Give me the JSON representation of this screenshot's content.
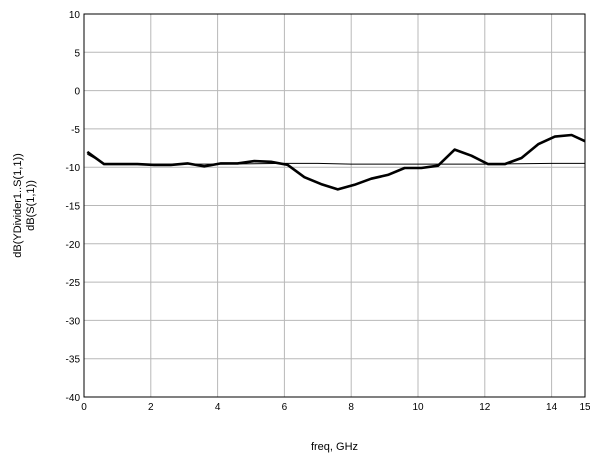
{
  "chart_data": {
    "type": "line",
    "xlabel": "freq, GHz",
    "ylabel": [
      "dB(YDivider1..S(1,1))",
      "dB(S(1,1))"
    ],
    "xlim": [
      0,
      15
    ],
    "ylim": [
      -40,
      10
    ],
    "xticks": [
      0,
      2,
      4,
      6,
      8,
      10,
      12,
      14,
      15
    ],
    "yticks": [
      10,
      5,
      0,
      -5,
      -10,
      -15,
      -20,
      -25,
      -30,
      -35,
      -40
    ],
    "grid": true,
    "series": [
      {
        "color": "#000000",
        "line_weight": "thin",
        "x": [
          0.1,
          0.6,
          2,
          4,
          6,
          7,
          8,
          10,
          12,
          14,
          15
        ],
        "y": [
          -8.3,
          -9.5,
          -9.6,
          -9.6,
          -9.5,
          -9.5,
          -9.6,
          -9.6,
          -9.6,
          -9.5,
          -9.5
        ]
      },
      {
        "color": "#000000",
        "line_weight": "thick",
        "x": [
          0.1,
          0.6,
          1.1,
          1.6,
          2.1,
          2.6,
          3.1,
          3.6,
          4.1,
          4.6,
          5.1,
          5.6,
          6.1,
          6.6,
          7.1,
          7.6,
          8.1,
          8.6,
          9.1,
          9.6,
          10.1,
          10.6,
          11.1,
          11.6,
          12.1,
          12.6,
          13.1,
          13.6,
          14.1,
          14.6,
          15
        ],
        "y": [
          -8.0,
          -9.6,
          -9.6,
          -9.6,
          -9.7,
          -9.7,
          -9.5,
          -9.9,
          -9.5,
          -9.5,
          -9.2,
          -9.3,
          -9.7,
          -11.3,
          -12.2,
          -12.9,
          -12.3,
          -11.5,
          -11.0,
          -10.1,
          -10.1,
          -9.8,
          -7.7,
          -8.5,
          -9.6,
          -9.6,
          -8.8,
          -7.0,
          -6.0,
          -5.8,
          -6.6
        ]
      }
    ]
  }
}
